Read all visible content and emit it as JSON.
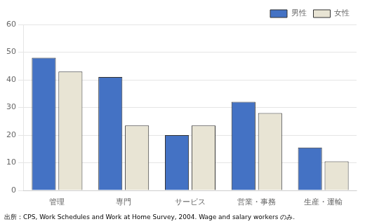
{
  "chart_data": {
    "type": "bar",
    "categories": [
      "管理",
      "専門",
      "サービス",
      "営業・事務",
      "生産・運輸"
    ],
    "series": [
      {
        "name": "男性",
        "color": "#4472C4",
        "values": [
          48,
          41,
          20,
          32,
          15.5
        ]
      },
      {
        "name": "女性",
        "color": "#E8E4D4",
        "values": [
          43,
          23.5,
          23.5,
          28,
          10.5
        ]
      }
    ],
    "ylim": [
      0,
      60
    ],
    "yticks": [
      0,
      10,
      20,
      30,
      40,
      50,
      60
    ],
    "grid": true,
    "legend": "upper right",
    "caption": "出所：CPS, Work Schedules and Work at Home Survey, 2004. Wage and salary workers のみ."
  }
}
